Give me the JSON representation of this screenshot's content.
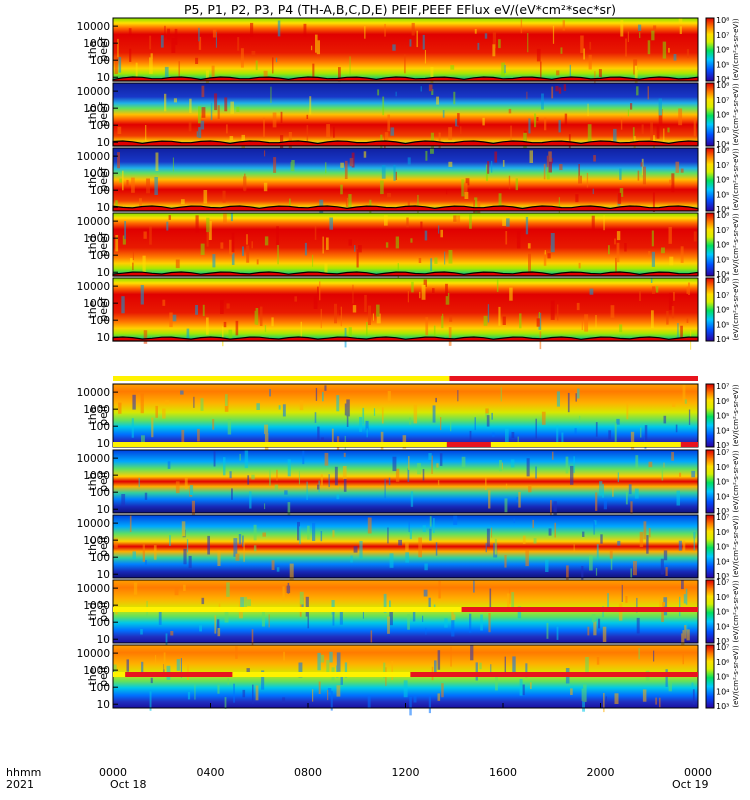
{
  "title": "P5, P1, P2, P3, P4 (TH-A,B,C,D,E) PEIF,PEEF EFlux eV/(eV*cm²*sec*sr)",
  "xaxis": {
    "row1_label": "hhmm",
    "row2_label": "2021",
    "ticks": [
      "0000",
      "0400",
      "0800",
      "1200",
      "1600",
      "2000",
      "0000"
    ],
    "date_labels": [
      "Oct 18",
      "Oct 19"
    ]
  },
  "colors": {
    "flag_red": "#e8141e",
    "flag_yellow": "#fff200",
    "curve": "#000000"
  },
  "chart_data": {
    "type": "heatmap",
    "x_unit": "hhmm",
    "x_range": [
      "2021-10-18 00:00",
      "2021-10-19 00:00"
    ],
    "y_scale": "log",
    "ytick_labels": [
      "10",
      "100",
      "1000",
      "10000"
    ],
    "panels": [
      {
        "probe": "tha",
        "product": "peef",
        "ylabel": [
          "tha",
          "peef"
        ],
        "colorbar_ticks": [
          "10⁴",
          "10⁵",
          "10⁶",
          "10⁷",
          "10⁸"
        ],
        "colorbar_label": "(eV/(cm²-s-sr-eV))",
        "style": "electron"
      },
      {
        "probe": "thb",
        "product": "peef",
        "ylabel": [
          "thb",
          "peef"
        ],
        "colorbar_ticks": [
          "10⁴",
          "10⁵",
          "10⁶",
          "10⁷",
          "10⁸"
        ],
        "colorbar_label": "(eV/(cm²-s-sr-eV))",
        "style": "electron_dense"
      },
      {
        "probe": "thc",
        "product": "peef",
        "ylabel": [
          "thc",
          "peef"
        ],
        "colorbar_ticks": [
          "10⁴",
          "10⁵",
          "10⁶",
          "10⁷",
          "10⁸"
        ],
        "colorbar_label": "(eV/(cm²-s-sr-eV))",
        "style": "electron_dense"
      },
      {
        "probe": "thd",
        "product": "peef",
        "ylabel": [
          "thd",
          "peef"
        ],
        "colorbar_ticks": [
          "10⁴",
          "10⁵",
          "10⁶",
          "10⁷",
          "10⁸"
        ],
        "colorbar_label": "(eV/(cm²-s-sr-eV))",
        "style": "electron"
      },
      {
        "probe": "the",
        "product": "peef",
        "ylabel": [
          "the",
          "peef"
        ],
        "colorbar_ticks": [
          "10⁴",
          "10⁵",
          "10⁶",
          "10⁷",
          "10⁸"
        ],
        "colorbar_label": "(eV/(cm²-s-sr-eV))",
        "style": "electron"
      },
      {
        "probe": "tha",
        "product": "peif",
        "ylabel": [
          "tha",
          "peif"
        ],
        "colorbar_ticks": [
          "10³",
          "10⁴",
          "10⁵",
          "10⁶",
          "10⁷"
        ],
        "colorbar_label": "(eV/(cm²-s-sr-eV))",
        "style": "ion"
      },
      {
        "probe": "thb",
        "product": "peif",
        "ylabel": [
          "thb",
          "peif"
        ],
        "colorbar_ticks": [
          "10³",
          "10⁴",
          "10⁵",
          "10⁶",
          "10⁷"
        ],
        "colorbar_label": "(eV/(cm²-s-sr-eV))",
        "style": "ion_band"
      },
      {
        "probe": "thc",
        "product": "peif",
        "ylabel": [
          "thc",
          "peif"
        ],
        "colorbar_ticks": [
          "10³",
          "10⁴",
          "10⁵",
          "10⁶",
          "10⁷"
        ],
        "colorbar_label": "(eV/(cm²-s-sr-eV))",
        "style": "ion_band"
      },
      {
        "probe": "thd",
        "product": "peif",
        "ylabel": [
          "thd",
          "peif"
        ],
        "colorbar_ticks": [
          "10³",
          "10⁴",
          "10⁵",
          "10⁶",
          "10⁷"
        ],
        "colorbar_label": "(eV/(cm²-s-sr-eV))",
        "style": "ion"
      },
      {
        "probe": "the",
        "product": "peif",
        "ylabel": [
          "the",
          "peif"
        ],
        "colorbar_ticks": [
          "10³",
          "10⁴",
          "10⁵",
          "10⁶",
          "10⁷"
        ],
        "colorbar_label": "(eV/(cm²-s-sr-eV))",
        "style": "ion"
      }
    ],
    "flag_bars": [
      {
        "above_panel": 5,
        "segments": [
          {
            "from": 0.0,
            "to": 13.8,
            "color": "yellow"
          },
          {
            "from": 13.8,
            "to": 24.0,
            "color": "red"
          }
        ]
      },
      {
        "above_panel": 6,
        "segments": [
          {
            "from": 0.0,
            "to": 13.7,
            "color": "yellow"
          },
          {
            "from": 13.7,
            "to": 15.5,
            "color": "red"
          },
          {
            "from": 15.5,
            "to": 23.3,
            "color": "yellow"
          },
          {
            "from": 23.3,
            "to": 24.0,
            "color": "red"
          }
        ]
      },
      {
        "above_panel": 8,
        "segments": [
          {
            "from": 0.0,
            "to": 14.3,
            "color": "yellow"
          },
          {
            "from": 14.3,
            "to": 24.0,
            "color": "red"
          }
        ]
      },
      {
        "above_panel": 9,
        "segments": [
          {
            "from": 0.0,
            "to": 0.5,
            "color": "yellow"
          },
          {
            "from": 0.5,
            "to": 4.9,
            "color": "red"
          },
          {
            "from": 4.9,
            "to": 12.2,
            "color": "yellow"
          },
          {
            "from": 12.2,
            "to": 24.0,
            "color": "red"
          }
        ]
      }
    ]
  }
}
